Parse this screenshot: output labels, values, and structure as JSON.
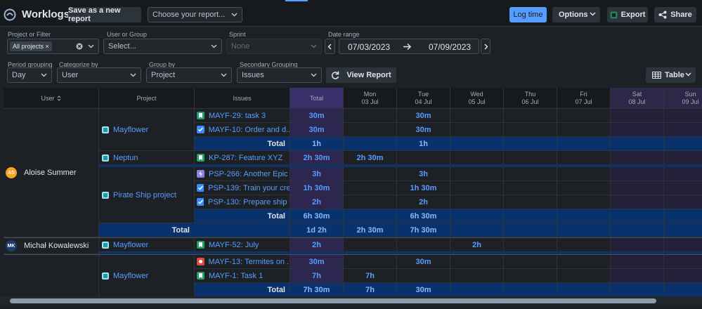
{
  "header": {
    "title": "Worklogs",
    "save_button": "Save as a new report",
    "report_select": "Choose your report...",
    "log_time": "Log time",
    "options": "Options",
    "export": "Export",
    "share": "Share"
  },
  "filters": {
    "project_label": "Project or Filter",
    "project_chip": "All projects",
    "user_label": "User or Group",
    "user_placeholder": "Select...",
    "sprint_label": "Sprint",
    "sprint_value": "None",
    "date_label": "Date range",
    "date_from": "07/03/2023",
    "date_to": "07/09/2023",
    "period_label": "Period grouping",
    "period_value": "Day",
    "categorize_label": "Categorize by",
    "categorize_value": "User",
    "group_label": "Group by",
    "group_value": "Project",
    "secondary_label": "Secondary Grouping",
    "secondary_value": "Issues",
    "view_report": "View Report",
    "view_mode": "Table"
  },
  "table": {
    "columns": {
      "user": "User",
      "project": "Project",
      "issues": "Issues",
      "total": "Total"
    },
    "days": [
      {
        "weekday": "Mon",
        "date": "03 Jul",
        "highlight": false
      },
      {
        "weekday": "Tue",
        "date": "04 Jul",
        "highlight": false
      },
      {
        "weekday": "Wed",
        "date": "05 Jul",
        "highlight": false
      },
      {
        "weekday": "Thu",
        "date": "06 Jul",
        "highlight": false
      },
      {
        "weekday": "Fri",
        "date": "07 Jul",
        "highlight": false
      },
      {
        "weekday": "Sat",
        "date": "08 Jul",
        "highlight": true
      },
      {
        "weekday": "Sun",
        "date": "09 Jul",
        "highlight": true
      }
    ],
    "users": [
      {
        "initials": "AS",
        "avatar_color": "#f5a623",
        "name": "Aloise Summer",
        "projects": [
          {
            "name": "Mayflower",
            "issues": [
              {
                "icon": "story",
                "label": "MAYF-29: task 3",
                "total": "30m",
                "days": [
                  null,
                  "30m",
                  null,
                  null,
                  null,
                  null,
                  null
                ]
              },
              {
                "icon": "task",
                "label": "MAYF-10: Order and d...",
                "total": "30m",
                "days": [
                  null,
                  "30m",
                  null,
                  null,
                  null,
                  null,
                  null
                ]
              }
            ],
            "total": {
              "label": "Total",
              "total": "1h",
              "days": [
                null,
                "1h",
                null,
                null,
                null,
                null,
                null
              ]
            }
          },
          {
            "name": "Neptun",
            "issues": [
              {
                "icon": "story",
                "label": "KP-287: Feature XYZ",
                "total": "2h 30m",
                "days": [
                  "2h 30m",
                  null,
                  null,
                  null,
                  null,
                  null,
                  null
                ]
              }
            ]
          },
          {
            "name": "Pirate Ship project",
            "issues": [
              {
                "icon": "epic",
                "label": "PSP-266: Another Epic",
                "total": "3h",
                "days": [
                  null,
                  "3h",
                  null,
                  null,
                  null,
                  null,
                  null
                ]
              },
              {
                "icon": "task",
                "label": "PSP-139: Train your cre...",
                "total": "1h 30m",
                "days": [
                  null,
                  "1h 30m",
                  null,
                  null,
                  null,
                  null,
                  null
                ]
              },
              {
                "icon": "task",
                "label": "PSP-130: Prepare ship t...",
                "total": "2h",
                "days": [
                  null,
                  "2h",
                  null,
                  null,
                  null,
                  null,
                  null
                ]
              }
            ],
            "total": {
              "label": "Total",
              "total": "6h 30m",
              "days": [
                null,
                "6h 30m",
                null,
                null,
                null,
                null,
                null
              ]
            }
          }
        ],
        "total": {
          "label": "Total",
          "total": "1d 2h",
          "days": [
            "2h 30m",
            "7h 30m",
            null,
            null,
            null,
            null,
            null
          ]
        }
      },
      {
        "initials": "MK",
        "avatar_color": "#1d3c6e",
        "name": "Michał Kowalewski",
        "projects": [
          {
            "name": "Mayflower",
            "issues": [
              {
                "icon": "story",
                "label": "MAYF-52: July",
                "total": "2h",
                "days": [
                  null,
                  null,
                  "2h",
                  null,
                  null,
                  null,
                  null
                ]
              }
            ]
          }
        ]
      },
      {
        "initials": null,
        "avatar_color": null,
        "name": null,
        "projects": [
          {
            "name": "Mayflower",
            "issues": [
              {
                "icon": "bug",
                "label": "MAYF-13: Termites on ...",
                "total": "30m",
                "days": [
                  null,
                  "30m",
                  null,
                  null,
                  null,
                  null,
                  null
                ]
              },
              {
                "icon": "story",
                "label": "MAYF-1: Task 1",
                "total": "7h",
                "days": [
                  "7h",
                  null,
                  null,
                  null,
                  null,
                  null,
                  null
                ]
              }
            ],
            "total": {
              "label": "Total",
              "total": "7h 30m",
              "days": [
                "7h",
                "30m",
                null,
                null,
                null,
                null,
                null
              ]
            }
          }
        ]
      }
    ]
  }
}
